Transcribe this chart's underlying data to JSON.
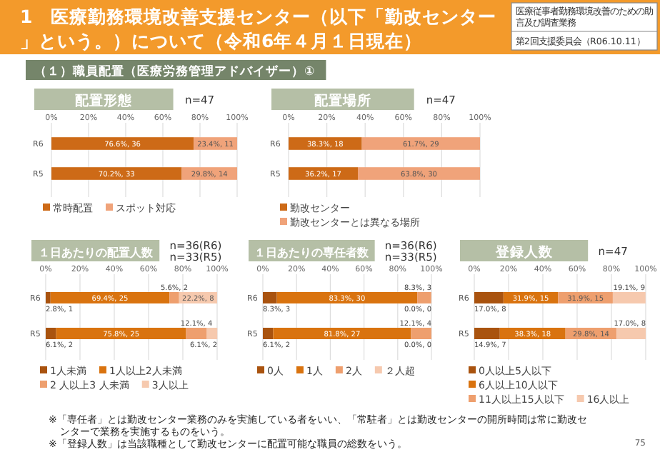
{
  "chart_data": [
    {
      "type": "bar",
      "orientation": "horizontal",
      "stacked": true,
      "title": "配置形態",
      "subtitle": "n=47",
      "categories": [
        "R6",
        "R5"
      ],
      "series": [
        {
          "name": "常時配置",
          "color": "#cd6a17",
          "values": [
            76.6,
            70.2
          ],
          "value_labels": [
            "76.6%, 36",
            "70.2%, 33"
          ]
        },
        {
          "name": "スポット対応",
          "color": "#f0a37a",
          "values": [
            23.4,
            29.8
          ],
          "value_labels": [
            "23.4%, 11",
            "29.8%, 14"
          ]
        }
      ],
      "xlim": [
        0,
        100
      ],
      "xticks": [
        {
          "value": 0,
          "label": "0%"
        },
        {
          "value": 20,
          "label": "20%"
        },
        {
          "value": 40,
          "label": "40%"
        },
        {
          "value": 60,
          "label": "60%"
        },
        {
          "value": 80,
          "label": "80%"
        },
        {
          "value": 100,
          "label": "100%"
        }
      ],
      "grid": "x",
      "legend": "bottom",
      "annotations": [
        "1　医療勤務環境改善支援センター（以下「勤改センター」という。）について（令和6年４月１日現在）",
        "医療従事者勤務環境改善のための助言及び調査業務",
        "第2回支援委員会（R06.10.11）",
        "（１）職員配置（医療労務管理アドバイザー）①"
      ]
    },
    {
      "type": "bar",
      "orientation": "horizontal",
      "stacked": true,
      "title": "配置場所",
      "subtitle": "n=47",
      "categories": [
        "R6",
        "R5"
      ],
      "series": [
        {
          "name": "勤改センター",
          "color": "#cd6a17",
          "values": [
            38.3,
            36.2
          ],
          "value_labels": [
            "38.3%, 18",
            "36.2%, 17"
          ]
        },
        {
          "name": "勤改センターとは異なる場所",
          "color": "#f0a37a",
          "values": [
            61.7,
            63.8
          ],
          "value_labels": [
            "61.7%, 29",
            "63.8%, 30"
          ]
        }
      ],
      "xlim": [
        0,
        100
      ],
      "xticks": [
        {
          "value": 0,
          "label": "0%"
        },
        {
          "value": 20,
          "label": "20%"
        },
        {
          "value": 40,
          "label": "40%"
        },
        {
          "value": 60,
          "label": "60%"
        },
        {
          "value": 80,
          "label": "80%"
        },
        {
          "value": 100,
          "label": "100%"
        }
      ],
      "grid": "x",
      "legend": "bottom"
    },
    {
      "type": "bar",
      "orientation": "horizontal",
      "stacked": true,
      "title": "１日あたりの配置人数",
      "subtitle": "n=36(R6)\nn=33(R5)",
      "categories": [
        "R6",
        "R5"
      ],
      "series": [
        {
          "name": "1人未満",
          "color": "#a9530f",
          "values": [
            2.8,
            6.1
          ],
          "value_labels": [
            "2.8%, 1",
            "6.1%, 2"
          ]
        },
        {
          "name": "1人以上2人未満",
          "color": "#d9730f",
          "values": [
            69.4,
            75.8
          ],
          "value_labels": [
            "69.4%, 25",
            "75.8%, 25"
          ]
        },
        {
          "name": "2 人以上3 人未満",
          "color": "#ee9f6e",
          "values": [
            5.6,
            12.1
          ],
          "value_labels": [
            "5.6%, 2",
            "12.1%, 4"
          ]
        },
        {
          "name": "3人以上",
          "color": "#f6c9ae",
          "values": [
            22.2,
            6.1
          ],
          "value_labels": [
            "22.2%, 8",
            "6.1%, 2"
          ]
        }
      ],
      "xlim": [
        0,
        100
      ],
      "xticks": [
        {
          "value": 0,
          "label": "0%"
        },
        {
          "value": 20,
          "label": "20%"
        },
        {
          "value": 40,
          "label": "40%"
        },
        {
          "value": 60,
          "label": "60%"
        },
        {
          "value": 80,
          "label": "80%"
        },
        {
          "value": 100,
          "label": "100%"
        }
      ],
      "grid": "x",
      "legend": "bottom"
    },
    {
      "type": "bar",
      "orientation": "horizontal",
      "stacked": true,
      "title": "１日あたりの専任者数",
      "subtitle": "n=36(R6)\nn=33(R5)",
      "categories": [
        "R6",
        "R5"
      ],
      "series": [
        {
          "name": "0人",
          "color": "#a9530f",
          "values": [
            8.3,
            6.1
          ],
          "value_labels": [
            "8.3%, 3",
            "6.1%, 2"
          ]
        },
        {
          "name": "1人",
          "color": "#d9730f",
          "values": [
            83.3,
            81.8
          ],
          "value_labels": [
            "83.3%, 30",
            "81.8%, 27"
          ]
        },
        {
          "name": "2人",
          "color": "#ee9f6e",
          "values": [
            8.3,
            12.1
          ],
          "value_labels": [
            "8.3%, 3",
            "12.1%, 4"
          ]
        },
        {
          "name": "２人超",
          "color": "#f6c9ae",
          "values": [
            0.0,
            0.0
          ],
          "value_labels": [
            "0.0%, 0",
            "0.0%, 0"
          ]
        }
      ],
      "xlim": [
        0,
        100
      ],
      "xticks": [
        {
          "value": 0,
          "label": "0%"
        },
        {
          "value": 20,
          "label": "20%"
        },
        {
          "value": 40,
          "label": "40%"
        },
        {
          "value": 60,
          "label": "60%"
        },
        {
          "value": 80,
          "label": "80%"
        },
        {
          "value": 100,
          "label": "100%"
        }
      ],
      "grid": "x",
      "legend": "bottom"
    },
    {
      "type": "bar",
      "orientation": "horizontal",
      "stacked": true,
      "title": "登録人数",
      "subtitle": "n=47",
      "categories": [
        "R6",
        "R5"
      ],
      "series": [
        {
          "name": "0人以上5人以下",
          "color": "#a9530f",
          "values": [
            17.0,
            14.9
          ],
          "value_labels": [
            "17.0%, 8",
            "14.9%, 7"
          ]
        },
        {
          "name": "6人以上10人以下",
          "color": "#d9730f",
          "values": [
            31.9,
            38.3
          ],
          "value_labels": [
            "31.9%, 15",
            "38.3%, 18"
          ]
        },
        {
          "name": "11人以上15人以下",
          "color": "#ee9f6e",
          "values": [
            31.9,
            29.8
          ],
          "value_labels": [
            "31.9%, 15",
            "29.8%, 14"
          ]
        },
        {
          "name": "16人以上",
          "color": "#f6c9ae",
          "values": [
            19.1,
            17.0
          ],
          "value_labels": [
            "19.1%, 9",
            "17.0%, 8"
          ]
        }
      ],
      "xlim": [
        0,
        100
      ],
      "xticks": [
        {
          "value": 0,
          "label": "0%"
        },
        {
          "value": 20,
          "label": "20%"
        },
        {
          "value": 40,
          "label": "40%"
        },
        {
          "value": 60,
          "label": "60%"
        },
        {
          "value": 80,
          "label": "80%"
        },
        {
          "value": 100,
          "label": "100%"
        }
      ],
      "grid": "x",
      "legend": "bottom",
      "annotations": [
        "※「専任者」とは勤改センター業務のみを実施している者をいい、「常駐者」とは勤改センターの開所時間は常に勤改センターで業務を実施するものをいう。",
        "※「登録人数」は当該職種として勤改センターに配置可能な職員の総数をいう。",
        "75"
      ]
    }
  ]
}
